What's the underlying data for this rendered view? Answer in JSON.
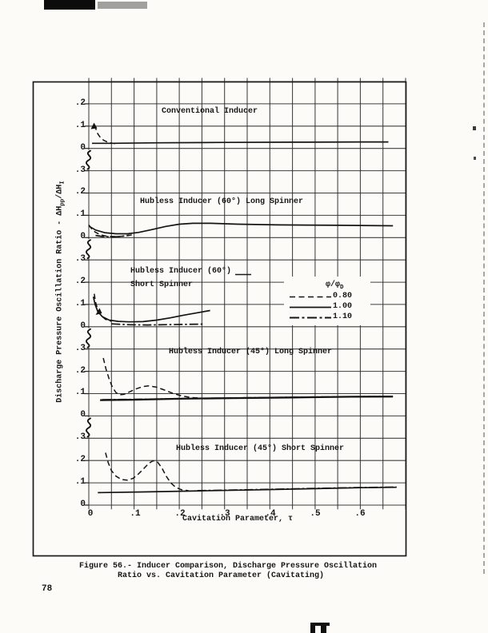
{
  "page": {
    "number": "78"
  },
  "figure": {
    "caption_line1": "Figure 56.- Inducer Comparison, Discharge Pressure Oscillation",
    "caption_line2": "Ratio vs. Cavitation Parameter (Cavitating)",
    "xlabel": "Cavitation Parameter, τ",
    "ylabel": {
      "pre": "Discharge Pressure Oscillation Ratio - ΔH",
      "sub1": "pp",
      "mid": "/ΔH",
      "sub2": "I"
    },
    "panel_titles": [
      "Conventional Inducer",
      "Hubless Inducer (60°) Long Spinner",
      "Hubless Inducer (60°)",
      "Short Spinner",
      "Hubless Inducer (45°) Long Spinner",
      "Hubless Inducer (45°) Short Spinner"
    ],
    "legend": {
      "header_pre": "φ/φ",
      "header_sub": "D",
      "items": [
        {
          "style": "dashed",
          "label": "0.80"
        },
        {
          "style": "solid",
          "label": "1.00"
        },
        {
          "style": "dashdot",
          "label": "1.10"
        }
      ]
    },
    "yticks": [
      ".2",
      ".1",
      "0",
      ".3",
      ".2",
      ".1",
      "0",
      ".3",
      ".2",
      ".1",
      "0",
      ".3",
      ".2",
      ".1",
      "0",
      ".3",
      ".2",
      ".1",
      "0"
    ],
    "xticks": [
      "0",
      ".1",
      ".2",
      ".3",
      ".4",
      ".5",
      ".6"
    ]
  },
  "chart_data": {
    "type": "line",
    "title": "Figure 56.- Inducer Comparison, Discharge Pressure Oscillation Ratio vs. Cavitation Parameter (Cavitating)",
    "xlabel": "Cavitation Parameter, τ",
    "ylabel": "Discharge Pressure Oscillation Ratio - ΔHpp/ΔHI",
    "xlim": [
      0,
      0.7
    ],
    "x_tick_values": [
      0,
      0.1,
      0.2,
      0.3,
      0.4,
      0.5,
      0.6
    ],
    "grid": true,
    "legend_title": "φ/φD",
    "legend_position": "inset panel 3, right",
    "panel_ylim": [
      0,
      0.3
    ],
    "panel_y_ticks": [
      0,
      0.1,
      0.2,
      0.3
    ],
    "panels": [
      {
        "title": "Conventional Inducer",
        "series": [
          {
            "name": "0.80",
            "style": "dashed",
            "points": [
              [
                0.013,
                0.105
              ],
              [
                0.016,
                0.085
              ],
              [
                0.02,
                0.065
              ],
              [
                0.026,
                0.048
              ],
              [
                0.033,
                0.036
              ],
              [
                0.042,
                0.028
              ],
              [
                0.053,
                0.023
              ],
              [
                0.062,
                0.021
              ]
            ]
          },
          {
            "name": "1.00",
            "style": "solid",
            "points": [
              [
                0.007,
                0.023
              ],
              [
                0.05,
                0.023
              ],
              [
                0.15,
                0.025
              ],
              [
                0.3,
                0.027
              ],
              [
                0.45,
                0.028
              ],
              [
                0.6,
                0.029
              ],
              [
                0.662,
                0.029
              ]
            ]
          }
        ]
      },
      {
        "title": "Hubless Inducer (60°) Long Spinner",
        "series": [
          {
            "name": "0.80",
            "style": "dashed",
            "points": [
              [
                0.0,
                0.057
              ],
              [
                0.006,
                0.04
              ],
              [
                0.014,
                0.025
              ],
              [
                0.025,
                0.013
              ],
              [
                0.04,
                0.006
              ],
              [
                0.06,
                0.004
              ],
              [
                0.08,
                0.007
              ],
              [
                0.095,
                0.012
              ]
            ]
          },
          {
            "name": "1.10",
            "style": "dashdot",
            "points": [
              [
                0.015,
                0.01
              ],
              [
                0.03,
                0.005
              ],
              [
                0.05,
                0.003
              ],
              [
                0.07,
                0.005
              ],
              [
                0.09,
                0.011
              ]
            ]
          },
          {
            "name": "1.00",
            "style": "solid",
            "points": [
              [
                0.0,
                0.052
              ],
              [
                0.015,
                0.034
              ],
              [
                0.035,
                0.022
              ],
              [
                0.06,
                0.017
              ],
              [
                0.085,
                0.017
              ],
              [
                0.11,
                0.023
              ],
              [
                0.14,
                0.036
              ],
              [
                0.17,
                0.05
              ],
              [
                0.2,
                0.06
              ],
              [
                0.23,
                0.064
              ],
              [
                0.27,
                0.064
              ],
              [
                0.33,
                0.06
              ],
              [
                0.42,
                0.057
              ],
              [
                0.55,
                0.055
              ],
              [
                0.672,
                0.053
              ]
            ]
          }
        ]
      },
      {
        "title": "Hubless Inducer (60°) Short Spinner",
        "series": [
          {
            "name": "0.80",
            "style": "dashed",
            "points": [
              [
                0.012,
                0.148
              ],
              [
                0.015,
                0.11
              ],
              [
                0.02,
                0.075
              ],
              [
                0.027,
                0.05
              ],
              [
                0.037,
                0.033
              ],
              [
                0.05,
                0.024
              ]
            ]
          },
          {
            "name": "1.00",
            "style": "solid",
            "points": [
              [
                0.01,
                0.135
              ],
              [
                0.014,
                0.1
              ],
              [
                0.02,
                0.068
              ],
              [
                0.03,
                0.045
              ],
              [
                0.045,
                0.03
              ],
              [
                0.065,
                0.024
              ],
              [
                0.09,
                0.022
              ],
              [
                0.12,
                0.023
              ],
              [
                0.15,
                0.03
              ],
              [
                0.18,
                0.04
              ],
              [
                0.21,
                0.052
              ],
              [
                0.24,
                0.063
              ],
              [
                0.268,
                0.073
              ]
            ]
          },
          {
            "name": "1.10",
            "style": "dashdot",
            "points": [
              [
                0.05,
                0.013
              ],
              [
                0.09,
                0.009
              ],
              [
                0.13,
                0.008
              ],
              [
                0.18,
                0.01
              ],
              [
                0.22,
                0.011
              ],
              [
                0.255,
                0.012
              ]
            ]
          }
        ]
      },
      {
        "title": "Hubless Inducer (45°) Long Spinner",
        "series": [
          {
            "name": "0.80",
            "style": "dashed",
            "points": [
              [
                0.032,
                0.26
              ],
              [
                0.038,
                0.21
              ],
              [
                0.045,
                0.165
              ],
              [
                0.052,
                0.13
              ],
              [
                0.06,
                0.105
              ],
              [
                0.068,
                0.095
              ],
              [
                0.078,
                0.097
              ],
              [
                0.09,
                0.108
              ],
              [
                0.105,
                0.122
              ],
              [
                0.12,
                0.132
              ],
              [
                0.133,
                0.135
              ],
              [
                0.148,
                0.13
              ],
              [
                0.165,
                0.118
              ],
              [
                0.185,
                0.102
              ],
              [
                0.205,
                0.09
              ],
              [
                0.225,
                0.083
              ],
              [
                0.245,
                0.08
              ]
            ]
          },
          {
            "name": "1.00",
            "style": "solid",
            "width": 2.3,
            "points": [
              [
                0.025,
                0.071
              ],
              [
                0.1,
                0.073
              ],
              [
                0.2,
                0.077
              ],
              [
                0.32,
                0.08
              ],
              [
                0.45,
                0.083
              ],
              [
                0.58,
                0.086
              ],
              [
                0.672,
                0.087
              ]
            ]
          },
          {
            "name": "1.10",
            "style": "dashdot",
            "points": [
              [
                0.03,
                0.073
              ],
              [
                0.12,
                0.075
              ],
              [
                0.25,
                0.079
              ],
              [
                0.38,
                0.082
              ],
              [
                0.5,
                0.085
              ],
              [
                0.6,
                0.087
              ],
              [
                0.668,
                0.088
              ]
            ]
          }
        ]
      },
      {
        "title": "Hubless Inducer (45°) Short Spinner",
        "series": [
          {
            "name": "0.80",
            "style": "dashed",
            "points": [
              [
                0.037,
                0.235
              ],
              [
                0.043,
                0.19
              ],
              [
                0.05,
                0.155
              ],
              [
                0.06,
                0.13
              ],
              [
                0.072,
                0.115
              ],
              [
                0.085,
                0.112
              ],
              [
                0.098,
                0.12
              ],
              [
                0.11,
                0.14
              ],
              [
                0.122,
                0.165
              ],
              [
                0.133,
                0.188
              ],
              [
                0.142,
                0.199
              ],
              [
                0.152,
                0.193
              ],
              [
                0.162,
                0.165
              ],
              [
                0.171,
                0.13
              ],
              [
                0.181,
                0.1
              ],
              [
                0.192,
                0.08
              ],
              [
                0.205,
                0.069
              ],
              [
                0.22,
                0.065
              ]
            ]
          },
          {
            "name": "1.00",
            "style": "solid",
            "points": [
              [
                0.02,
                0.056
              ],
              [
                0.12,
                0.059
              ],
              [
                0.25,
                0.064
              ],
              [
                0.38,
                0.069
              ],
              [
                0.5,
                0.074
              ],
              [
                0.6,
                0.078
              ],
              [
                0.68,
                0.08
              ]
            ]
          },
          {
            "name": "1.10",
            "style": "dashdot",
            "points": [
              [
                0.24,
                0.065
              ],
              [
                0.35,
                0.069
              ],
              [
                0.47,
                0.074
              ],
              [
                0.58,
                0.078
              ],
              [
                0.68,
                0.081
              ]
            ]
          }
        ]
      }
    ]
  }
}
